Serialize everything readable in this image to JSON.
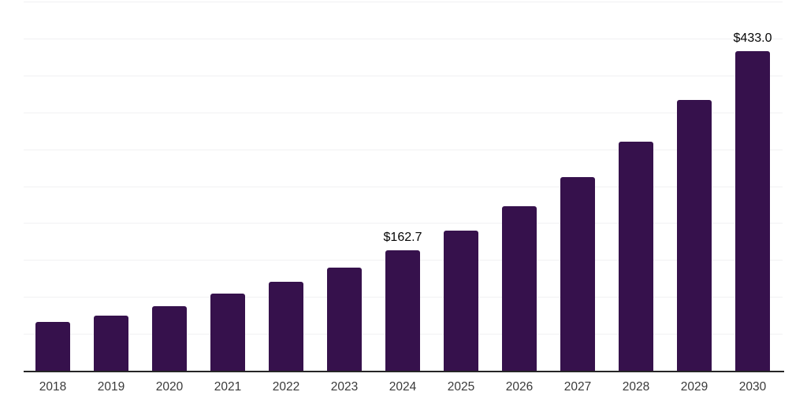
{
  "chart_data": {
    "type": "bar",
    "title": "",
    "xlabel": "",
    "ylabel": "",
    "ylim": [
      0,
      500
    ],
    "gridline_step": 50,
    "grid": "horizontal",
    "legend": "none",
    "categories": [
      "2018",
      "2019",
      "2020",
      "2021",
      "2022",
      "2023",
      "2024",
      "2025",
      "2026",
      "2027",
      "2028",
      "2029",
      "2030"
    ],
    "values": [
      66,
      75,
      88,
      105,
      120,
      140,
      162.7,
      190,
      223,
      262,
      310,
      367,
      433.0
    ],
    "data_labels": [
      "",
      "",
      "",
      "",
      "",
      "",
      "$162.7",
      "",
      "",
      "",
      "",
      "",
      "$433.0"
    ],
    "colors": {
      "bar": "#36114C",
      "axis_line": "#262626",
      "gridline": "#f1f1f3",
      "tick_label": "#3a3a3a",
      "value_label": "#050505",
      "background": "#ffffff"
    }
  }
}
